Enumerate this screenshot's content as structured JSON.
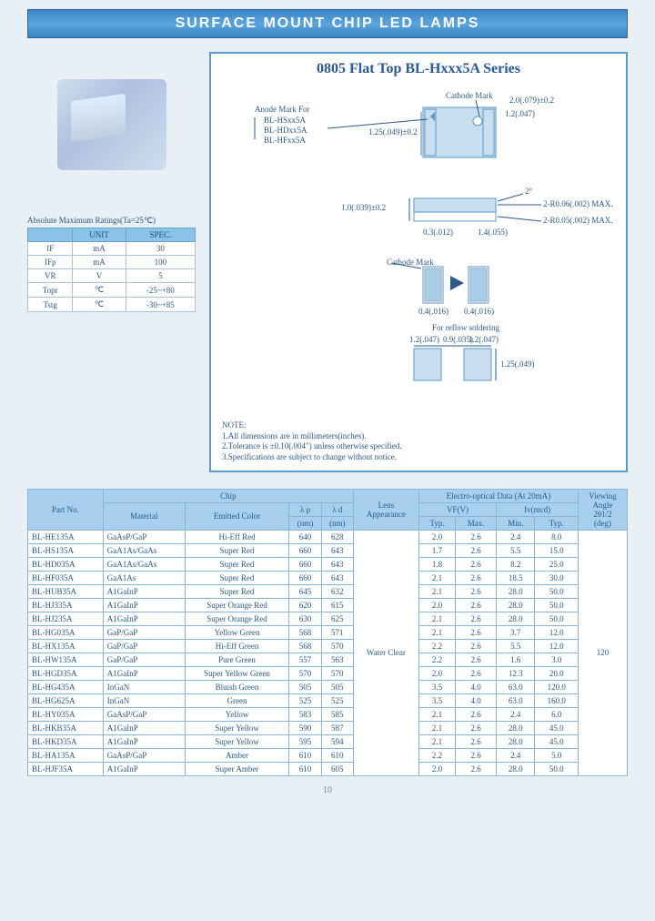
{
  "banner": "SURFACE MOUNT CHIP LED LAMPS",
  "diagram_title": "0805 Flat Top BL-Hxxx5A Series",
  "anode_label": "Anode Mark For",
  "anode_lines": [
    "BL-HSxx5A",
    "BL-HDxx5A",
    "BL-HFxx5A"
  ],
  "cathode_label": "Cathode Mark",
  "dims": {
    "d1": "2.0(.079)±0.2",
    "d2": "1.2(.047)",
    "d3": "1.25(.049)±0.2",
    "d4": "2°",
    "d5": "2-R0.06(.002) MAX.",
    "d6": "2-R0.05(.002) MAX.",
    "d7": "1.0(.039)±0.2",
    "d8": "0.3(.012)",
    "d9": "1.4(.055)",
    "d10": "0.4(.016)",
    "d11": "0.4(.016)",
    "reflow": "For reflow soldering",
    "r1": "1.2(.047)",
    "r2": "0.9(.035)",
    "r3": "1.2(.047)",
    "r4": "1.25(.049)"
  },
  "notes_heading": "NOTE:",
  "notes": [
    "1.All dimensions are in millimeters(inches).",
    "2.Tolerance is ±0.10(.004\") unless otherwise specified.",
    "3.Specifications are subject to change without notice."
  ],
  "amr_caption": "Absolute Maximum Ratings(Ta=25℃)",
  "amr_headers": [
    "",
    "UNIT",
    "SPEC."
  ],
  "amr_rows": [
    [
      "IF",
      "mA",
      "30"
    ],
    [
      "IFp",
      "mA",
      "100"
    ],
    [
      "VR",
      "V",
      "5"
    ],
    [
      "Topr",
      "℃",
      "-25~+80"
    ],
    [
      "Tstg",
      "℃",
      "-30~+85"
    ]
  ],
  "headers": {
    "partno": "Part No.",
    "chip": "Chip",
    "material": "Material",
    "emitted": "Emitted Color",
    "lp": "λ p",
    "ld": "λ d",
    "nm": "(nm)",
    "lens": "Lens\nAppearance",
    "eo": "Electro-optical Data (At 20mA)",
    "vf": "VF(V)",
    "iv": "Iv(mcd)",
    "typ": "Typ.",
    "max": "Max.",
    "min": "Min.",
    "va": "Viewing\nAngle\n2θ1/2\n(deg)"
  },
  "lens_value": "Water Clear",
  "angle_value": "120",
  "rows": [
    {
      "pn": "BL-HE135A",
      "mat": "GaAsP/GaP",
      "col": "Hi-Eff Red",
      "lp": "640",
      "ld": "628",
      "vfT": "2.0",
      "vfM": "2.6",
      "ivMin": "2.4",
      "ivTyp": "8.0"
    },
    {
      "pn": "BL-HS135A",
      "mat": "GaA1As/GaAs",
      "col": "Super Red",
      "lp": "660",
      "ld": "643",
      "vfT": "1.7",
      "vfM": "2.6",
      "ivMin": "5.5",
      "ivTyp": "15.0"
    },
    {
      "pn": "BL-HD035A",
      "mat": "GaA1As/GaAs",
      "col": "Super Red",
      "lp": "660",
      "ld": "643",
      "vfT": "1.8",
      "vfM": "2.6",
      "ivMin": "8.2",
      "ivTyp": "25.0"
    },
    {
      "pn": "BL-HF035A",
      "mat": "GaA1As",
      "col": "Super Red",
      "lp": "660",
      "ld": "643",
      "vfT": "2.1",
      "vfM": "2.6",
      "ivMin": "18.5",
      "ivTyp": "30.0"
    },
    {
      "pn": "BL-HUB35A",
      "mat": "A1GaInP",
      "col": "Super Red",
      "lp": "645",
      "ld": "632",
      "vfT": "2.1",
      "vfM": "2.6",
      "ivMin": "28.0",
      "ivTyp": "50.0"
    },
    {
      "pn": "BL-HJ335A",
      "mat": "A1GaInP",
      "col": "Super Orange Red",
      "lp": "620",
      "ld": "615",
      "vfT": "2.0",
      "vfM": "2.6",
      "ivMin": "28.0",
      "ivTyp": "50.0"
    },
    {
      "pn": "BL-HJ235A",
      "mat": "A1GaInP",
      "col": "Super Orange Red",
      "lp": "630",
      "ld": "625",
      "vfT": "2.1",
      "vfM": "2.6",
      "ivMin": "28.0",
      "ivTyp": "50.0"
    },
    {
      "pn": "BL-HG035A",
      "mat": "GaP/GaP",
      "col": "Yellow Green",
      "lp": "568",
      "ld": "571",
      "vfT": "2.1",
      "vfM": "2.6",
      "ivMin": "3.7",
      "ivTyp": "12.0"
    },
    {
      "pn": "BL-HX135A",
      "mat": "GaP/GaP",
      "col": "Hi-Eff Green",
      "lp": "568",
      "ld": "570",
      "vfT": "2.2",
      "vfM": "2.6",
      "ivMin": "5.5",
      "ivTyp": "12.0"
    },
    {
      "pn": "BL-HW135A",
      "mat": "GaP/GaP",
      "col": "Pure Green",
      "lp": "557",
      "ld": "563",
      "vfT": "2.2",
      "vfM": "2.6",
      "ivMin": "1.6",
      "ivTyp": "3.0"
    },
    {
      "pn": "BL-HGD35A",
      "mat": "A1GaInP",
      "col": "Super Yellow Green",
      "lp": "570",
      "ld": "570",
      "vfT": "2.0",
      "vfM": "2.6",
      "ivMin": "12.3",
      "ivTyp": "20.0"
    },
    {
      "pn": "BL-HG435A",
      "mat": "InGaN",
      "col": "Bluish Green",
      "lp": "505",
      "ld": "505",
      "vfT": "3.5",
      "vfM": "4.0",
      "ivMin": "63.0",
      "ivTyp": "120.0"
    },
    {
      "pn": "BL-HG625A",
      "mat": "InGaN",
      "col": "Green",
      "lp": "525",
      "ld": "525",
      "vfT": "3.5",
      "vfM": "4.0",
      "ivMin": "63.0",
      "ivTyp": "160.0"
    },
    {
      "pn": "BL-HY035A",
      "mat": "GaAsP/GaP",
      "col": "Yellow",
      "lp": "583",
      "ld": "585",
      "vfT": "2.1",
      "vfM": "2.6",
      "ivMin": "2.4",
      "ivTyp": "6.0"
    },
    {
      "pn": "BL-HKB35A",
      "mat": "A1GaInP",
      "col": "Super Yellow",
      "lp": "590",
      "ld": "587",
      "vfT": "2.1",
      "vfM": "2.6",
      "ivMin": "28.0",
      "ivTyp": "45.0"
    },
    {
      "pn": "BL-HKD35A",
      "mat": "A1GaInP",
      "col": "Super Yellow",
      "lp": "595",
      "ld": "594",
      "vfT": "2.1",
      "vfM": "2.6",
      "ivMin": "28.0",
      "ivTyp": "45.0"
    },
    {
      "pn": "BL-HA135A",
      "mat": "GaAsP/GaP",
      "col": "Amber",
      "lp": "610",
      "ld": "610",
      "vfT": "2.2",
      "vfM": "2.6",
      "ivMin": "2.4",
      "ivTyp": "5.0"
    },
    {
      "pn": "BL-HJF35A",
      "mat": "A1GaInP",
      "col": "Super Amber",
      "lp": "610",
      "ld": "605",
      "vfT": "2.0",
      "vfM": "2.6",
      "ivMin": "28.0",
      "ivTyp": "50.0"
    }
  ],
  "pagenum": "10"
}
